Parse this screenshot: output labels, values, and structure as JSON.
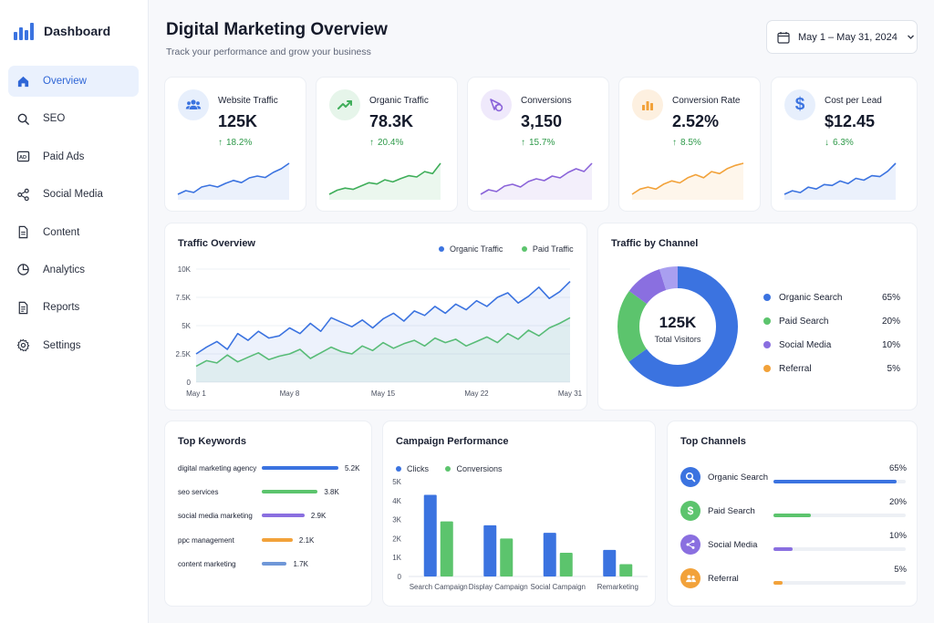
{
  "brand": {
    "title": "Dashboard",
    "accent": "#3b73e0"
  },
  "sidebar": {
    "items": [
      {
        "label": "Overview",
        "icon": "home-icon",
        "active": true
      },
      {
        "label": "SEO",
        "icon": "search-icon"
      },
      {
        "label": "Paid Ads",
        "icon": "ads-icon"
      },
      {
        "label": "Social Media",
        "icon": "share-icon"
      },
      {
        "label": "Content",
        "icon": "document-icon"
      },
      {
        "label": "Analytics",
        "icon": "pie-chart-icon"
      },
      {
        "label": "Reports",
        "icon": "report-icon"
      },
      {
        "label": "Settings",
        "icon": "gear-icon"
      }
    ]
  },
  "header": {
    "title": "Digital Marketing Overview",
    "subtitle": "Track your performance and grow your business",
    "date_range": "May 1 – May 31, 2024"
  },
  "kpis": [
    {
      "label": "Website Traffic",
      "value": "125K",
      "change": "18.2%",
      "direction": "up",
      "icon": "users-icon",
      "color": "#3b73e0",
      "bg": "#e7effc",
      "trend": [
        3,
        4,
        3.5,
        5,
        5.5,
        5,
        6,
        6.8,
        6.2,
        7.5,
        8,
        7.6,
        9,
        10,
        11.5
      ]
    },
    {
      "label": "Organic Traffic",
      "value": "78.3K",
      "change": "20.4%",
      "direction": "up",
      "icon": "trending-up-icon",
      "color": "#3fae5a",
      "bg": "#e6f5ea",
      "trend": [
        2,
        3,
        3.5,
        3.2,
        4,
        4.8,
        4.5,
        5.5,
        5,
        5.8,
        6.5,
        6.2,
        7.5,
        7,
        9.5
      ]
    },
    {
      "label": "Conversions",
      "value": "3,150",
      "change": "15.7%",
      "direction": "up",
      "icon": "cursor-click-icon",
      "color": "#8a63d9",
      "bg": "#efe9fb",
      "trend": [
        2,
        3,
        2.6,
        3.8,
        4.2,
        3.6,
        4.8,
        5.4,
        5,
        6,
        5.6,
        6.8,
        7.6,
        7,
        8.8
      ]
    },
    {
      "label": "Conversion Rate",
      "value": "2.52%",
      "change": "8.5%",
      "direction": "up",
      "icon": "bar-chart-icon",
      "color": "#f2a23a",
      "bg": "#fdf0e0",
      "trend": [
        2,
        3,
        3.4,
        3,
        4,
        4.6,
        4.2,
        5.2,
        5.8,
        5.2,
        6.4,
        6,
        7,
        7.6,
        8
      ]
    },
    {
      "label": "Cost per Lead",
      "value": "$12.45",
      "change": "6.3%",
      "direction": "down",
      "icon": "dollar-icon",
      "color": "#3b73e0",
      "bg": "#e7effc",
      "trend": [
        3,
        3.8,
        3.4,
        4.6,
        4.2,
        5.2,
        5,
        6,
        5.4,
        6.6,
        6.2,
        7.2,
        7,
        8.2,
        10
      ]
    }
  ],
  "traffic_overview": {
    "title": "Traffic Overview",
    "legend": {
      "organic": "Organic Traffic",
      "paid": "Paid Traffic"
    },
    "chart_data": {
      "type": "area",
      "x_ticks": [
        "May 1",
        "May 8",
        "May 15",
        "May 22",
        "May 31"
      ],
      "y_ticks": [
        "10K",
        "7.5K",
        "5K",
        "2.5K",
        "0"
      ],
      "ylim": [
        0,
        10000
      ],
      "series": [
        {
          "name": "Organic Traffic",
          "color": "#3b73e0",
          "values": [
            2500,
            3100,
            3600,
            2900,
            4300,
            3700,
            4500,
            3900,
            4100,
            4800,
            4300,
            5200,
            4500,
            5700,
            5300,
            4900,
            5500,
            4800,
            5600,
            6100,
            5400,
            6300,
            5900,
            6700,
            6100,
            6900,
            6400,
            7200,
            6700,
            7500,
            7900,
            7000,
            7600,
            8400,
            7400,
            8000,
            8900
          ]
        },
        {
          "name": "Paid Traffic",
          "color": "#5cc46d",
          "values": [
            1400,
            1900,
            1700,
            2400,
            1800,
            2200,
            2600,
            2000,
            2300,
            2500,
            2900,
            2100,
            2600,
            3100,
            2700,
            2500,
            3200,
            2800,
            3500,
            3000,
            3400,
            3700,
            3200,
            3900,
            3500,
            3800,
            3200,
            3600,
            4000,
            3500,
            4300,
            3800,
            4600,
            4100,
            4800,
            5200,
            5700
          ]
        }
      ],
      "grid": true
    }
  },
  "traffic_by_channel": {
    "title": "Traffic by Channel",
    "center_value": "125K",
    "center_label": "Total Visitors",
    "chart_data": {
      "type": "pie",
      "categories": [
        "Organic Search",
        "Paid Search",
        "Social Media",
        "Referral"
      ],
      "values": [
        65,
        20,
        10,
        5
      ],
      "labels": [
        "65%",
        "20%",
        "10%",
        "5%"
      ],
      "colors": [
        "#3b73e0",
        "#5cc46d",
        "#8a6fe0",
        "#a99ff0"
      ]
    }
  },
  "top_keywords": {
    "title": "Top Keywords",
    "chart_data": {
      "type": "bar",
      "categories": [
        "digital marketing agency",
        "seo services",
        "social media marketing",
        "ppc management",
        "content marketing"
      ],
      "values": [
        5200,
        3800,
        2900,
        2100,
        1700
      ],
      "labels": [
        "5.2K",
        "3.8K",
        "2.9K",
        "2.1K",
        "1.7K"
      ],
      "colors": [
        "#3b73e0",
        "#5cc46d",
        "#8a6fe0",
        "#f2a23a",
        "#6f97d8"
      ]
    }
  },
  "campaign_performance": {
    "title": "Campaign Performance",
    "legend": {
      "clicks": "Clicks",
      "conversions": "Conversions"
    },
    "chart_data": {
      "type": "bar",
      "categories": [
        "Search Campaign",
        "Display Campaign",
        "Social Campaign",
        "Remarketing"
      ],
      "y_ticks": [
        "5K",
        "4K",
        "3K",
        "2K",
        "1K",
        "0"
      ],
      "ylim": [
        0,
        5000
      ],
      "series": [
        {
          "name": "Clicks",
          "color": "#3b73e0",
          "values": [
            4300,
            2700,
            2300,
            1400
          ]
        },
        {
          "name": "Conversions",
          "color": "#5cc46d",
          "values": [
            2900,
            2000,
            1250,
            650
          ]
        }
      ]
    }
  },
  "top_channels": {
    "title": "Top Channels",
    "items": [
      {
        "label": "Organic Search",
        "pct": "65%",
        "value": 0.65,
        "icon": "search-icon",
        "color": "#3b73e0"
      },
      {
        "label": "Paid Search",
        "pct": "20%",
        "value": 0.2,
        "icon": "dollar-icon",
        "color": "#5cc46d"
      },
      {
        "label": "Social Media",
        "pct": "10%",
        "value": 0.1,
        "icon": "share-icon",
        "color": "#8a6fe0"
      },
      {
        "label": "Referral",
        "pct": "5%",
        "value": 0.05,
        "icon": "users-icon",
        "color": "#f2a23a"
      }
    ]
  }
}
